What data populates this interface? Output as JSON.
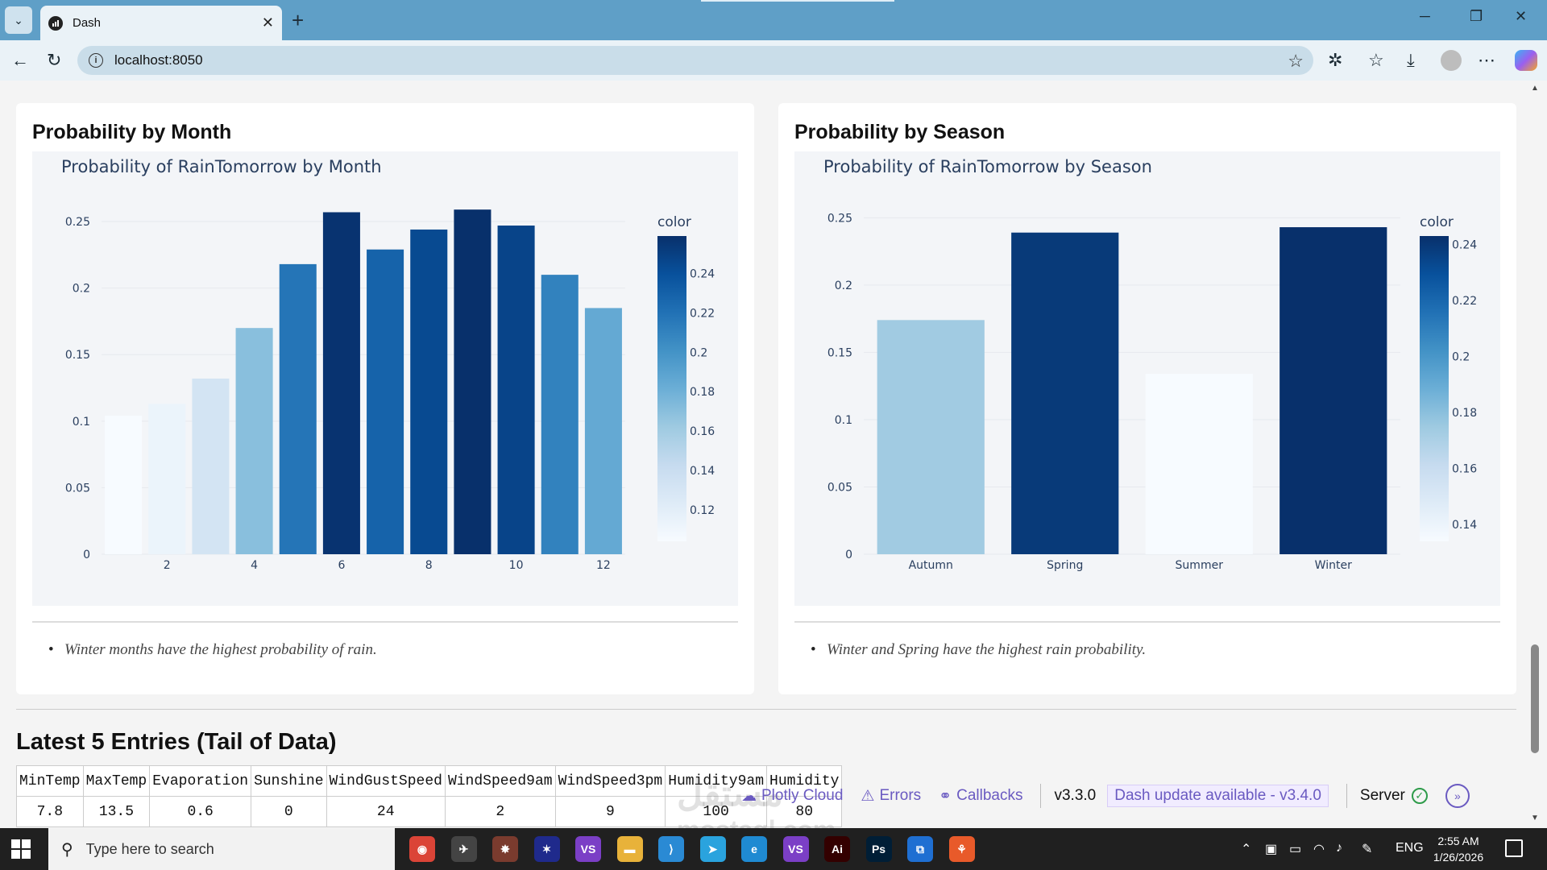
{
  "browser": {
    "tab_title": "Dash",
    "url": "localhost:8050",
    "window_controls": [
      "─",
      "❐",
      "✕"
    ]
  },
  "month_card": {
    "title": "Probability by Month",
    "note": "Winter months have the highest probability of rain."
  },
  "season_card": {
    "title": "Probability by Season",
    "note": "Winter and Spring have the highest rain probability."
  },
  "chart_data": [
    {
      "type": "bar",
      "title": "Probability of RainTomorrow by Month",
      "categories": [
        1,
        2,
        3,
        4,
        5,
        6,
        7,
        8,
        9,
        10,
        11,
        12
      ],
      "values": [
        0.104,
        0.113,
        0.132,
        0.17,
        0.218,
        0.257,
        0.229,
        0.244,
        0.259,
        0.247,
        0.21,
        0.185
      ],
      "xticks": [
        "2",
        "4",
        "6",
        "8",
        "10",
        "12"
      ],
      "xtick_values": [
        2,
        4,
        6,
        8,
        10,
        12
      ],
      "yticks": [
        "0",
        "0.05",
        "0.1",
        "0.15",
        "0.2",
        "0.25"
      ],
      "ylim": [
        0,
        0.27
      ],
      "grid": true,
      "colorbar": {
        "title": "color",
        "ticks": [
          "0.24",
          "0.22",
          "0.2",
          "0.18",
          "0.16",
          "0.14",
          "0.12"
        ],
        "range": [
          0.104,
          0.259
        ],
        "placement": "right"
      },
      "colorscale": "Blues"
    },
    {
      "type": "bar",
      "title": "Probability of RainTomorrow by Season",
      "categories": [
        "Autumn",
        "Spring",
        "Summer",
        "Winter"
      ],
      "values": [
        0.174,
        0.239,
        0.134,
        0.243
      ],
      "yticks": [
        "0",
        "0.05",
        "0.1",
        "0.15",
        "0.2",
        "0.25"
      ],
      "ylim": [
        0,
        0.255
      ],
      "grid": true,
      "colorbar": {
        "title": "color",
        "ticks": [
          "0.24",
          "0.22",
          "0.2",
          "0.18",
          "0.16",
          "0.14"
        ],
        "range": [
          0.134,
          0.243
        ],
        "placement": "right"
      },
      "colorscale": "Blues"
    }
  ],
  "table": {
    "title": "Latest 5 Entries (Tail of Data)",
    "columns": [
      "MinTemp",
      "MaxTemp",
      "Evaporation",
      "Sunshine",
      "WindGustSpeed",
      "WindSpeed9am",
      "WindSpeed3pm",
      "Humidity9am",
      "Humidity"
    ],
    "rows": [
      [
        "7.8",
        "13.5",
        "0.6",
        "0",
        "24",
        "2",
        "9",
        "100",
        "80"
      ]
    ]
  },
  "devtools": {
    "plotly_cloud": "Plotly Cloud",
    "errors": "Errors",
    "callbacks": "Callbacks",
    "version": "v3.3.0",
    "update": "Dash update available - v3.4.0",
    "server": "Server"
  },
  "watermark": {
    "arabic": "مستقل",
    "latin": "mostaql.com"
  },
  "taskbar": {
    "search_placeholder": "Type here to search",
    "lang": "ENG",
    "time": "2:55 AM",
    "date": "1/26/2026",
    "apps": [
      {
        "name": "chrome",
        "label": "◉",
        "color": "#db4437"
      },
      {
        "name": "app-2",
        "label": "✈",
        "color": "#444"
      },
      {
        "name": "app-3",
        "label": "✸",
        "color": "#7a3b2e"
      },
      {
        "name": "app-4",
        "label": "✶",
        "color": "#1f2a8c"
      },
      {
        "name": "vs-preview",
        "label": "VS",
        "color": "#7b3fc6"
      },
      {
        "name": "file-explorer",
        "label": "▬",
        "color": "#e8b23a"
      },
      {
        "name": "vscode",
        "label": "⟩",
        "color": "#2a8ad4"
      },
      {
        "name": "telegram",
        "label": "➤",
        "color": "#2aa3de"
      },
      {
        "name": "edge",
        "label": "e",
        "color": "#1f8ad2"
      },
      {
        "name": "visual-studio",
        "label": "VS",
        "color": "#7b3fc6"
      },
      {
        "name": "illustrator",
        "label": "Ai",
        "color": "#330000"
      },
      {
        "name": "photoshop",
        "label": "Ps",
        "color": "#001e36"
      },
      {
        "name": "app-13",
        "label": "⧉",
        "color": "#1f6fd2"
      },
      {
        "name": "app-14",
        "label": "⚘",
        "color": "#e85a2a"
      }
    ]
  }
}
